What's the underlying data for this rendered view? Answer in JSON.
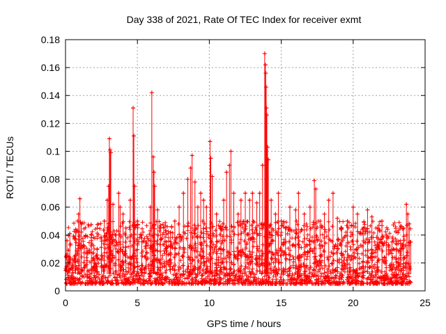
{
  "chart_data": {
    "type": "scatter",
    "title": "Day 338 of 2021, Rate Of TEC Index for receiver exmt",
    "xlabel": "GPS time / hours",
    "ylabel": "ROTI / TECUs",
    "xlim": [
      0,
      25
    ],
    "ylim": [
      0,
      0.18
    ],
    "xticks": [
      0,
      5,
      10,
      15,
      20,
      25
    ],
    "xtick_labels": [
      "0",
      "5",
      "10",
      "15",
      "20",
      "25"
    ],
    "yticks": [
      0,
      0.02,
      0.04,
      0.06,
      0.08,
      0.1,
      0.12,
      0.14,
      0.16,
      0.18
    ],
    "ytick_labels": [
      "0",
      "0.02",
      "0.04",
      "0.06",
      "0.08",
      "0.1",
      "0.12",
      "0.14",
      "0.16",
      "0.18"
    ],
    "grid": true,
    "marker": "+",
    "color": "#ff0000",
    "series": [
      {
        "name": "ROTI",
        "points": [
          [
            0.1,
            0.036
          ],
          [
            0.2,
            0.022
          ],
          [
            0.3,
            0.041
          ],
          [
            0.5,
            0.018
          ],
          [
            0.7,
            0.044
          ],
          [
            0.9,
            0.055
          ],
          [
            1.0,
            0.066
          ],
          [
            1.1,
            0.048
          ],
          [
            1.3,
            0.032
          ],
          [
            1.5,
            0.027
          ],
          [
            1.8,
            0.036
          ],
          [
            2.0,
            0.022
          ],
          [
            2.2,
            0.03
          ],
          [
            2.5,
            0.038
          ],
          [
            2.7,
            0.05
          ],
          [
            2.9,
            0.065
          ],
          [
            3.0,
            0.075
          ],
          [
            3.05,
            0.109
          ],
          [
            3.1,
            0.101
          ],
          [
            3.15,
            0.099
          ],
          [
            3.3,
            0.062
          ],
          [
            3.5,
            0.04
          ],
          [
            3.7,
            0.07
          ],
          [
            3.8,
            0.06
          ],
          [
            4.0,
            0.055
          ],
          [
            4.2,
            0.045
          ],
          [
            4.5,
            0.065
          ],
          [
            4.7,
            0.131
          ],
          [
            4.75,
            0.111
          ],
          [
            4.8,
            0.075
          ],
          [
            5.0,
            0.05
          ],
          [
            5.3,
            0.04
          ],
          [
            5.6,
            0.035
          ],
          [
            5.9,
            0.06
          ],
          [
            6.0,
            0.142
          ],
          [
            6.1,
            0.096
          ],
          [
            6.15,
            0.085
          ],
          [
            6.2,
            0.075
          ],
          [
            6.4,
            0.058
          ],
          [
            6.6,
            0.045
          ],
          [
            7.0,
            0.035
          ],
          [
            7.3,
            0.042
          ],
          [
            7.6,
            0.05
          ],
          [
            7.9,
            0.06
          ],
          [
            8.2,
            0.07
          ],
          [
            8.5,
            0.08
          ],
          [
            8.7,
            0.088
          ],
          [
            8.8,
            0.097
          ],
          [
            9.0,
            0.078
          ],
          [
            9.2,
            0.06
          ],
          [
            9.4,
            0.07
          ],
          [
            9.6,
            0.065
          ],
          [
            9.8,
            0.06
          ],
          [
            10.05,
            0.107
          ],
          [
            10.1,
            0.095
          ],
          [
            10.2,
            0.082
          ],
          [
            10.5,
            0.055
          ],
          [
            10.8,
            0.045
          ],
          [
            11.0,
            0.065
          ],
          [
            11.2,
            0.085
          ],
          [
            11.4,
            0.09
          ],
          [
            11.5,
            0.1
          ],
          [
            11.7,
            0.07
          ],
          [
            12.0,
            0.055
          ],
          [
            12.2,
            0.065
          ],
          [
            12.5,
            0.07
          ],
          [
            12.8,
            0.065
          ],
          [
            13.0,
            0.07
          ],
          [
            13.3,
            0.063
          ],
          [
            13.5,
            0.07
          ],
          [
            13.7,
            0.09
          ],
          [
            13.85,
            0.17
          ],
          [
            13.9,
            0.162
          ],
          [
            13.92,
            0.156
          ],
          [
            13.95,
            0.146
          ],
          [
            13.97,
            0.131
          ],
          [
            14.0,
            0.126
          ],
          [
            14.05,
            0.103
          ],
          [
            14.1,
            0.094
          ],
          [
            14.3,
            0.065
          ],
          [
            14.6,
            0.055
          ],
          [
            14.8,
            0.07
          ],
          [
            15.0,
            0.05
          ],
          [
            15.3,
            0.045
          ],
          [
            15.6,
            0.06
          ],
          [
            16.0,
            0.058
          ],
          [
            16.2,
            0.07
          ],
          [
            16.6,
            0.055
          ],
          [
            17.0,
            0.06
          ],
          [
            17.3,
            0.079
          ],
          [
            17.4,
            0.073
          ],
          [
            17.7,
            0.05
          ],
          [
            18.0,
            0.055
          ],
          [
            18.3,
            0.065
          ],
          [
            18.6,
            0.07
          ],
          [
            18.9,
            0.052
          ],
          [
            19.2,
            0.045
          ],
          [
            19.6,
            0.05
          ],
          [
            20.0,
            0.06
          ],
          [
            20.3,
            0.055
          ],
          [
            20.7,
            0.045
          ],
          [
            21.0,
            0.058
          ],
          [
            21.3,
            0.053
          ],
          [
            21.7,
            0.045
          ],
          [
            22.0,
            0.05
          ],
          [
            22.3,
            0.04
          ],
          [
            22.7,
            0.035
          ],
          [
            23.0,
            0.03
          ],
          [
            23.3,
            0.034
          ],
          [
            23.5,
            0.045
          ],
          [
            23.7,
            0.062
          ],
          [
            23.8,
            0.055
          ],
          [
            23.9,
            0.048
          ],
          [
            24.0,
            0.035
          ]
        ]
      }
    ]
  }
}
